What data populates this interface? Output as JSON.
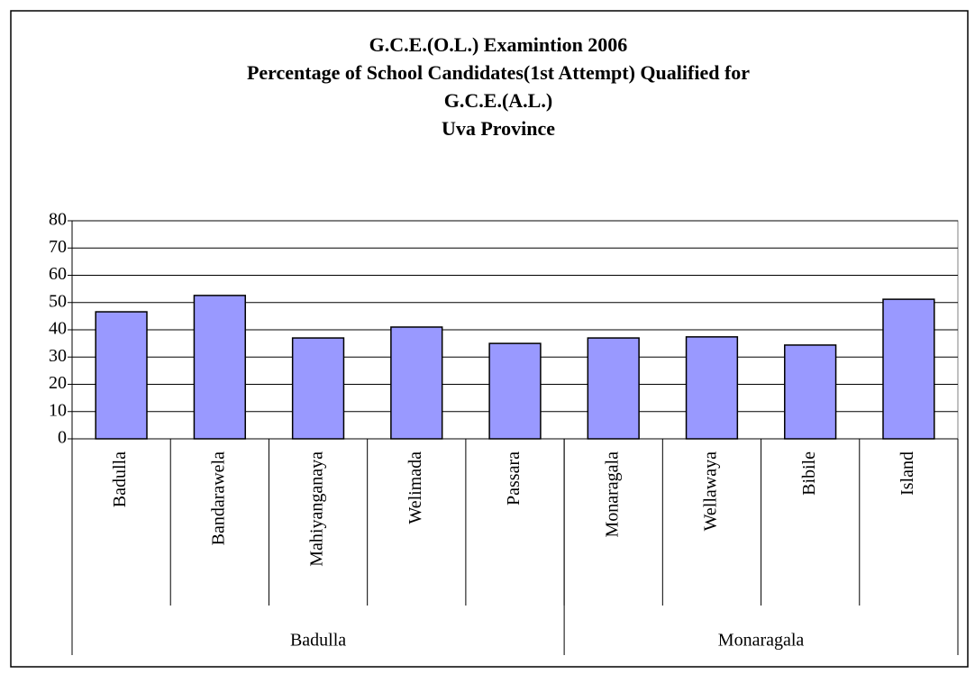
{
  "chart_data": {
    "type": "bar",
    "title": [
      "G.C.E.(O.L.) Examintion 2006",
      "Percentage of School Candidates(1st Attempt) Qualified for",
      "G.C.E.(A.L.)",
      "Uva Province"
    ],
    "categories": [
      "Badulla",
      "Bandarawela",
      "Mahiyanganaya",
      "Welimada",
      "Passara",
      "Monaragala",
      "Wellawaya",
      "Bibile",
      "Island"
    ],
    "groups": [
      {
        "label": "Badulla",
        "span": 5
      },
      {
        "label": "Monaragala",
        "span": 4
      }
    ],
    "values": [
      46.6,
      52.6,
      37.0,
      41.0,
      35.0,
      37.0,
      37.4,
      34.4,
      51.2
    ],
    "color": "#9999ff",
    "ylim": [
      0,
      80
    ],
    "yticks": [
      0,
      10,
      20,
      30,
      40,
      50,
      60,
      70,
      80
    ],
    "grid": true
  }
}
